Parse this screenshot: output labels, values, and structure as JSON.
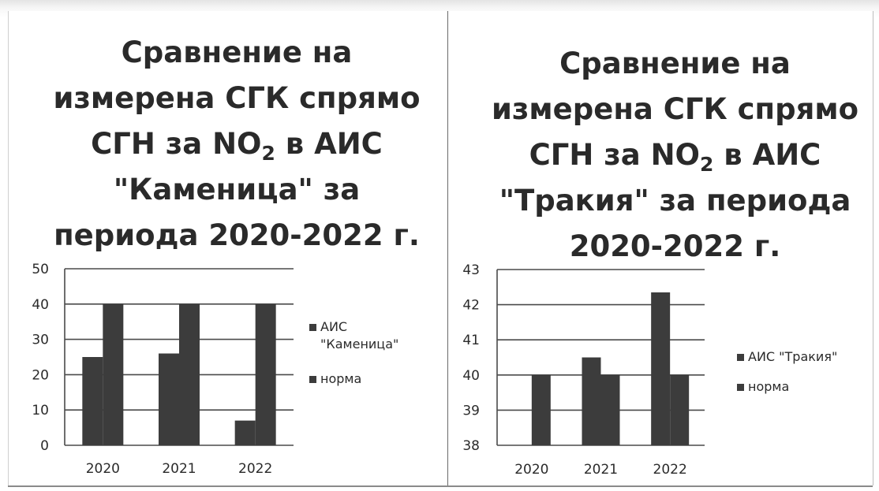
{
  "charts": [
    {
      "title_line1": "Сравнение на",
      "title_line2": "измерена СГК спрямо",
      "title_line3_pre": "СГН за NO",
      "title_line3_sub": "2",
      "title_line3_post": " в АИС",
      "title_line4": "\"Каменица\" за",
      "title_line5": "периода 2020-2022 г.",
      "legend": [
        "АИС \"Каменица\"",
        "норма"
      ]
    },
    {
      "title_line1": "Сравнение на",
      "title_line2": "измерена СГК спрямо",
      "title_line3_pre": "СГН за NO",
      "title_line3_sub": "2",
      "title_line3_post": " в АИС",
      "title_line4": "\"Тракия\" за периода",
      "title_line5": "2020-2022 г.",
      "legend": [
        "АИС \"Тракия\"",
        "норма"
      ]
    }
  ],
  "chart_data": [
    {
      "type": "bar",
      "title": "Сравнение на измерена СГК спрямо СГН за NO2 в АИС \"Каменица\" за периода 2020-2022 г.",
      "categories": [
        "2020",
        "2021",
        "2022"
      ],
      "series": [
        {
          "name": "АИС \"Каменица\"",
          "values": [
            25,
            26,
            7
          ]
        },
        {
          "name": "норма",
          "values": [
            40,
            40,
            40
          ]
        }
      ],
      "ylim": [
        0,
        50
      ],
      "yticks": [
        0,
        10,
        20,
        30,
        40,
        50
      ],
      "grid": true,
      "legend": "right",
      "color": "#3c3c3c"
    },
    {
      "type": "bar",
      "title": "Сравнение на измерена СГК спрямо СГН за NO2 в АИС \"Тракия\" за периода 2020-2022 г.",
      "categories": [
        "2020",
        "2021",
        "2022"
      ],
      "series": [
        {
          "name": "АИС \"Тракия\"",
          "values": [
            38,
            40.5,
            42.35
          ]
        },
        {
          "name": "норма",
          "values": [
            40,
            40,
            40
          ]
        }
      ],
      "ylim": [
        38,
        43
      ],
      "yticks": [
        38,
        39,
        40,
        41,
        42,
        43
      ],
      "grid": true,
      "legend": "right",
      "color": "#3c3c3c"
    }
  ]
}
